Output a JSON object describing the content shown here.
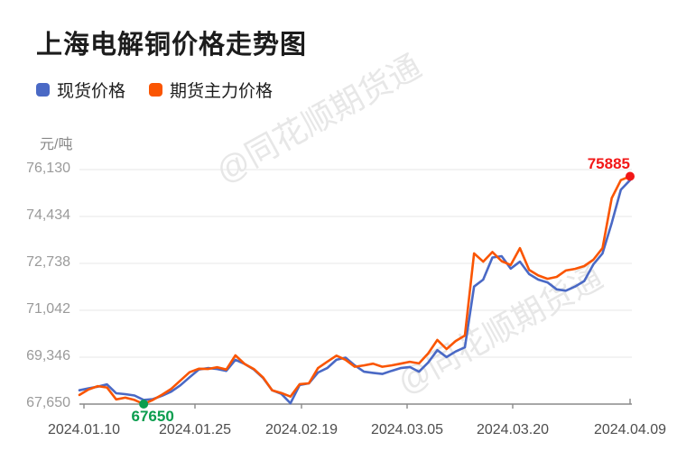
{
  "header": {
    "title": "上海电解铜价格走势图"
  },
  "legend": {
    "items": [
      {
        "label": "现货价格",
        "color": "#4a69c5"
      },
      {
        "label": "期货主力价格",
        "color": "#fa5502"
      }
    ]
  },
  "y_axis": {
    "unit": "元/吨",
    "tick_labels": [
      "76,130",
      "74,434",
      "72,738",
      "71,042",
      "69,346",
      "67,650"
    ],
    "tick_values": [
      76130,
      74434,
      72738,
      71042,
      69346,
      67650
    ]
  },
  "x_axis": {
    "tick_labels": [
      "2024.01.10",
      "2024.01.25",
      "2024.02.19",
      "2024.03.05",
      "2024.03.20",
      "2024.04.09"
    ]
  },
  "annotations": {
    "min": {
      "label": "67650",
      "color": "#0a9d4e",
      "dot_color": "#0a9d4e"
    },
    "max": {
      "label": "75885",
      "color": "#f21717",
      "dot_color": "#f21717"
    }
  },
  "watermark": {
    "text": "@同花顺期货通"
  },
  "chart_data": {
    "type": "line",
    "title": "上海电解铜价格走势图",
    "ylabel": "元/吨",
    "ylim": [
      67650,
      76130
    ],
    "grid": true,
    "legend_position": "top-left",
    "x_tick_labels": [
      "2024.01.10",
      "2024.01.25",
      "2024.02.19",
      "2024.03.05",
      "2024.03.20",
      "2024.04.09"
    ],
    "series": [
      {
        "name": "现货价格",
        "color": "#4a69c5",
        "values": [
          68150,
          68220,
          68280,
          68360,
          68040,
          68010,
          67960,
          67800,
          67830,
          67950,
          68100,
          68330,
          68620,
          68900,
          68950,
          68920,
          68850,
          69250,
          69100,
          68900,
          68600,
          68150,
          68020,
          67680,
          68340,
          68400,
          68790,
          68950,
          69250,
          69330,
          69050,
          68820,
          68780,
          68740,
          68850,
          68950,
          68990,
          68820,
          69150,
          69600,
          69350,
          69550,
          69700,
          71900,
          72150,
          72950,
          73000,
          72550,
          72800,
          72350,
          72150,
          72050,
          71800,
          71750,
          71900,
          72100,
          72700,
          73100,
          74200,
          75400,
          75750
        ]
      },
      {
        "name": "期货主力价格",
        "color": "#fa5502",
        "values": [
          67980,
          68180,
          68300,
          68250,
          67820,
          67880,
          67800,
          67650,
          67800,
          67990,
          68200,
          68500,
          68800,
          68930,
          68920,
          68980,
          68900,
          69410,
          69100,
          68920,
          68620,
          68150,
          68050,
          67920,
          68370,
          68400,
          68950,
          69180,
          69400,
          69250,
          69000,
          69050,
          69110,
          69000,
          69050,
          69110,
          69180,
          69120,
          69480,
          69970,
          69640,
          69930,
          70130,
          73100,
          72800,
          73150,
          72820,
          72680,
          73290,
          72500,
          72300,
          72180,
          72250,
          72480,
          72540,
          72640,
          72870,
          73290,
          75100,
          75750,
          75885
        ]
      }
    ],
    "annotated_min": 67650,
    "annotated_max": 75885
  }
}
